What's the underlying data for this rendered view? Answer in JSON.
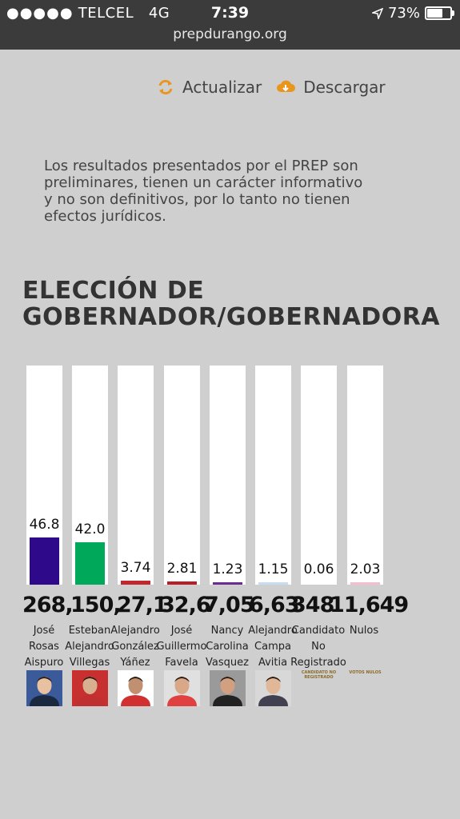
{
  "status_bar": {
    "signal_dots": "●●●●●",
    "carrier": "TELCEL",
    "network": "4G",
    "time": "7:39",
    "battery_pct": "73%",
    "battery_level": 0.73,
    "url": "prepdurango.org"
  },
  "actions": {
    "refresh_label": "Actualizar",
    "download_label": "Descargar",
    "accent_color": "#e8961e"
  },
  "disclaimer": "Los resultados presentados por el PREP son preliminares, tienen un carácter informativo y no son definitivos, por lo tanto no tienen efectos jurídicos.",
  "title_line1": "ELECCIÓN DE",
  "title_line2": "GOBERNADOR/GOBERNADORA",
  "chart_data": {
    "type": "bar",
    "ylim": [
      0,
      100
    ],
    "categories": [
      "José Rosas Aispuro",
      "Esteban Alejandro Villegas V",
      "Alejandro González Yáñez",
      "José Guillermo Favela Q",
      "Nancy Carolina Vasquez",
      "Alejandro Campa Avitia",
      "Candidato No Registrado",
      "Nulos"
    ],
    "values": [
      46.8,
      42.0,
      3.74,
      2.81,
      1.23,
      1.15,
      0.06,
      2.03
    ],
    "labels": [
      "46.8",
      "42.0",
      "3.74",
      "2.81",
      "1.23",
      "1.15",
      "0.06",
      "2.03"
    ],
    "colors": [
      "#2e0a8a",
      "#00a85a",
      "#c0282e",
      "#b81e28",
      "#6a2d8f",
      "#c6dcf0",
      "#ffffff",
      "#f3bfd0"
    ]
  },
  "votes_overlap": [
    "268,",
    "150,",
    "27,1",
    "32,6",
    "7,05",
    "6,63",
    "348",
    "11,649"
  ],
  "candidate_names": [
    [
      "José",
      "Rosas",
      "Aispuro"
    ],
    [
      "Esteban",
      "Alejandro",
      "Villegas"
    ],
    [
      "Alejandro",
      "González",
      "Yáñez"
    ],
    [
      "José",
      "Guillermo",
      "Favela"
    ],
    [
      "Nancy",
      "Carolina",
      "Vasquez"
    ],
    [
      "Alejandro",
      "Campa",
      "Avitia"
    ],
    [
      "Candidato",
      "No",
      "Registrado"
    ],
    [
      "Nulos",
      "",
      ""
    ]
  ],
  "small_labels": {
    "unregistered": "CANDIDATO NO REGISTRADO",
    "null_votes": "VOTOS NULOS"
  },
  "photo_icons": [
    "portrait-icon",
    "portrait-icon",
    "portrait-icon",
    "portrait-icon",
    "portrait-icon",
    "portrait-icon"
  ]
}
